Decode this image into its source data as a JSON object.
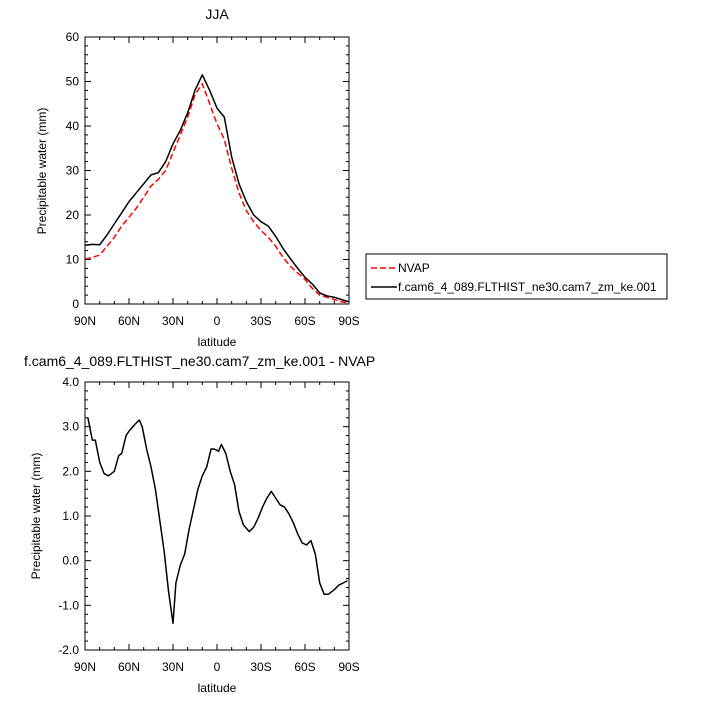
{
  "chart_data": [
    {
      "type": "line",
      "title": "JJA",
      "xlabel": "latitude",
      "ylabel": "Precipitable water (mm)",
      "xlim": [
        90,
        -90
      ],
      "ylim": [
        0,
        60
      ],
      "x_ticks": [
        90,
        60,
        30,
        0,
        -30,
        -60,
        -90
      ],
      "x_tick_labels": [
        "90N",
        "60N",
        "30N",
        "0",
        "30S",
        "60S",
        "90S"
      ],
      "y_ticks": [
        0,
        10,
        20,
        30,
        40,
        50,
        60
      ],
      "y_tick_labels": [
        "0",
        "10",
        "20",
        "30",
        "40",
        "50",
        "60"
      ],
      "legend_position": "right",
      "series": [
        {
          "name": "NVAP",
          "color": "#ff0000",
          "dash": true,
          "x": [
            90,
            85,
            80,
            75,
            70,
            65,
            60,
            55,
            50,
            45,
            40,
            35,
            30,
            25,
            20,
            15,
            10,
            5,
            0,
            -5,
            -10,
            -15,
            -20,
            -25,
            -30,
            -35,
            -40,
            -45,
            -50,
            -55,
            -60,
            -65,
            -70,
            -75,
            -80,
            -85,
            -90
          ],
          "y": [
            10,
            10.5,
            11,
            13,
            15,
            17.5,
            19.5,
            21.5,
            24,
            26.5,
            28,
            30,
            34,
            38,
            42,
            47,
            49.5,
            45,
            40.5,
            37,
            30.5,
            25,
            21,
            18.5,
            16.5,
            15,
            13,
            10.5,
            8.5,
            7,
            5.5,
            3.5,
            2,
            1.5,
            1,
            0.5,
            0.2
          ]
        },
        {
          "name": "f.cam6_4_089.FLTHIST_ne30.cam7_zm_ke.001",
          "color": "#000000",
          "dash": false,
          "x": [
            90,
            85,
            80,
            75,
            70,
            65,
            60,
            55,
            50,
            45,
            40,
            35,
            30,
            25,
            20,
            15,
            10,
            5,
            0,
            -5,
            -10,
            -15,
            -20,
            -25,
            -30,
            -35,
            -40,
            -45,
            -50,
            -55,
            -60,
            -65,
            -70,
            -75,
            -80,
            -85,
            -90
          ],
          "y": [
            13.2,
            13.4,
            13.3,
            15.5,
            18,
            20.5,
            23,
            25,
            27,
            29,
            29.5,
            32,
            36,
            39,
            43,
            48,
            51.5,
            48,
            44,
            42,
            33,
            27,
            23,
            20,
            18.5,
            17.5,
            15.2,
            12.5,
            10.2,
            8,
            6,
            4.5,
            2.5,
            1.8,
            1.5,
            1,
            0.5
          ]
        }
      ]
    },
    {
      "type": "line",
      "title": "f.cam6_4_089.FLTHIST_ne30.cam7_zm_ke.001 - NVAP",
      "xlabel": "latitude",
      "ylabel": "Precipitable water (mm)",
      "xlim": [
        90,
        -90
      ],
      "ylim": [
        -2,
        4
      ],
      "x_ticks": [
        90,
        60,
        30,
        0,
        -30,
        -60,
        -90
      ],
      "x_tick_labels": [
        "90N",
        "60N",
        "30N",
        "0",
        "30S",
        "60S",
        "90S"
      ],
      "y_ticks": [
        -2,
        -1,
        0,
        1,
        2,
        3,
        4
      ],
      "y_tick_labels": [
        "-2.0",
        "-1.0",
        "0.0",
        "1.0",
        "2.0",
        "3.0",
        "4.0"
      ],
      "series": [
        {
          "color": "#000000",
          "dash": false,
          "x": [
            88,
            85,
            83,
            80,
            77,
            74,
            70,
            67,
            65,
            62,
            60,
            56,
            53,
            51,
            48,
            45,
            42,
            39,
            36,
            33,
            30,
            28,
            25,
            22,
            19,
            16,
            13,
            10,
            7,
            4,
            2,
            -1,
            -3,
            -6,
            -9,
            -12,
            -15,
            -18,
            -22,
            -25,
            -28,
            -31,
            -34,
            -37,
            -40,
            -43,
            -46,
            -49,
            -52,
            -55,
            -58,
            -61,
            -64,
            -67,
            -70,
            -73,
            -76,
            -80,
            -83,
            -86,
            -89
          ],
          "y": [
            3.2,
            2.7,
            2.7,
            2.2,
            1.95,
            1.9,
            2.0,
            2.35,
            2.4,
            2.8,
            2.9,
            3.05,
            3.15,
            3.0,
            2.5,
            2.1,
            1.6,
            0.9,
            0.2,
            -0.7,
            -1.4,
            -0.5,
            -0.1,
            0.15,
            0.7,
            1.15,
            1.6,
            1.9,
            2.1,
            2.5,
            2.5,
            2.45,
            2.6,
            2.4,
            2.0,
            1.7,
            1.1,
            0.8,
            0.65,
            0.75,
            0.95,
            1.2,
            1.4,
            1.55,
            1.4,
            1.25,
            1.2,
            1.05,
            0.85,
            0.6,
            0.4,
            0.35,
            0.45,
            0.15,
            -0.5,
            -0.75,
            -0.75,
            -0.65,
            -0.55,
            -0.5,
            -0.45
          ]
        }
      ]
    }
  ]
}
